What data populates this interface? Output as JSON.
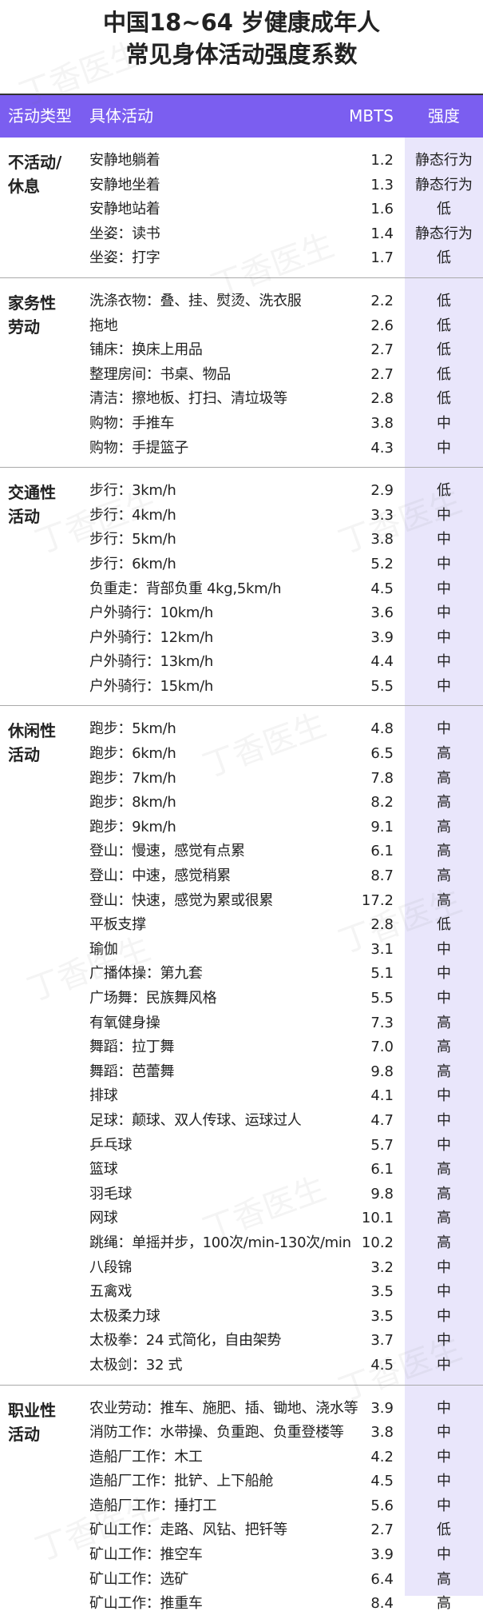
{
  "title": [
    "中国18~64 岁健康成年人",
    "常见身体活动强度系数"
  ],
  "header": [
    "活动类型",
    "具体活动",
    "MBTS",
    "强度"
  ],
  "watermark": "丁香医生",
  "groups": [
    {
      "name": [
        "不活动/",
        "休息"
      ],
      "rows": [
        [
          "安静地躺着",
          "1.2",
          "静态行为"
        ],
        [
          "安静地坐着",
          "1.3",
          "静态行为"
        ],
        [
          "安静地站着",
          "1.6",
          "低"
        ],
        [
          "坐姿：读书",
          "1.4",
          "静态行为"
        ],
        [
          "坐姿：打字",
          "1.7",
          "低"
        ]
      ]
    },
    {
      "name": [
        "家务性",
        "劳动"
      ],
      "rows": [
        [
          "洗涤衣物：叠、挂、熨烫、洗衣服",
          "2.2",
          "低"
        ],
        [
          "拖地",
          "2.6",
          "低"
        ],
        [
          "铺床：换床上用品",
          "2.7",
          "低"
        ],
        [
          "整理房间：书桌、物品",
          "2.7",
          "低"
        ],
        [
          "清洁：擦地板、打扫、清垃圾等",
          "2.8",
          "低"
        ],
        [
          "购物：手推车",
          "3.8",
          "中"
        ],
        [
          "购物：手提篮子",
          "4.3",
          "中"
        ]
      ]
    },
    {
      "name": [
        "交通性",
        "活动"
      ],
      "rows": [
        [
          "步行：3km/h",
          "2.9",
          "低"
        ],
        [
          "步行：4km/h",
          "3.3",
          "中"
        ],
        [
          "步行：5km/h",
          "3.8",
          "中"
        ],
        [
          "步行：6km/h",
          "5.2",
          "中"
        ],
        [
          "负重走：背部负重 4kg,5km/h",
          "4.5",
          "中"
        ],
        [
          "户外骑行：10km/h",
          "3.6",
          "中"
        ],
        [
          "户外骑行：12km/h",
          "3.9",
          "中"
        ],
        [
          "户外骑行：13km/h",
          "4.4",
          "中"
        ],
        [
          "户外骑行：15km/h",
          "5.5",
          "中"
        ]
      ]
    },
    {
      "name": [
        "休闲性",
        "活动"
      ],
      "rows": [
        [
          "跑步：5km/h",
          "4.8",
          "中"
        ],
        [
          "跑步：6km/h",
          "6.5",
          "高"
        ],
        [
          "跑步：7km/h",
          "7.8",
          "高"
        ],
        [
          "跑步：8km/h",
          "8.2",
          "高"
        ],
        [
          "跑步：9km/h",
          "9.1",
          "高"
        ],
        [
          "登山：慢速，感觉有点累",
          "6.1",
          "高"
        ],
        [
          "登山：中速，感觉稍累",
          "8.7",
          "高"
        ],
        [
          "登山：快速，感觉为累或很累",
          "17.2",
          "高"
        ],
        [
          "平板支撑",
          "2.8",
          "低"
        ],
        [
          "瑜伽",
          "3.1",
          "中"
        ],
        [
          "广播体操：第九套",
          "5.1",
          "中"
        ],
        [
          "广场舞：民族舞风格",
          "5.5",
          "中"
        ],
        [
          "有氧健身操",
          "7.3",
          "高"
        ],
        [
          "舞蹈：拉丁舞",
          "7.0",
          "高"
        ],
        [
          "舞蹈：芭蕾舞",
          "9.8",
          "高"
        ],
        [
          "排球",
          "4.1",
          "中"
        ],
        [
          "足球：颠球、双人传球、运球过人",
          "4.7",
          "中"
        ],
        [
          "乒乓球",
          "5.7",
          "中"
        ],
        [
          "篮球",
          "6.1",
          "高"
        ],
        [
          "羽毛球",
          "9.8",
          "高"
        ],
        [
          "网球",
          "10.1",
          "高"
        ],
        [
          "跳绳：单摇并步，100次/min-130次/min",
          "10.2",
          "高"
        ],
        [
          "八段锦",
          "3.2",
          "中"
        ],
        [
          "五禽戏",
          "3.5",
          "中"
        ],
        [
          "太极柔力球",
          "3.5",
          "中"
        ],
        [
          "太极拳：24 式简化，自由架势",
          "3.7",
          "中"
        ],
        [
          "太极剑：32 式",
          "4.5",
          "中"
        ]
      ]
    },
    {
      "name": [
        "职业性",
        "活动"
      ],
      "rows": [
        [
          "农业劳动：推车、施肥、插、锄地、浇水等",
          "3.9",
          "中"
        ],
        [
          "消防工作：水带操、负重跑、负重登楼等",
          "3.8",
          "中"
        ],
        [
          "造船厂工作：木工",
          "4.2",
          "中"
        ],
        [
          "造船厂工作：批铲、上下船舱",
          "4.5",
          "中"
        ],
        [
          "造船厂工作：捶打工",
          "5.6",
          "中"
        ],
        [
          "矿山工作：走路、风钻、把钎等",
          "2.7",
          "低"
        ],
        [
          "矿山工作：推空车",
          "3.9",
          "中"
        ],
        [
          "矿山工作：选矿",
          "6.4",
          "高"
        ],
        [
          "矿山工作：推重车",
          "8.4",
          "高"
        ]
      ]
    }
  ]
}
